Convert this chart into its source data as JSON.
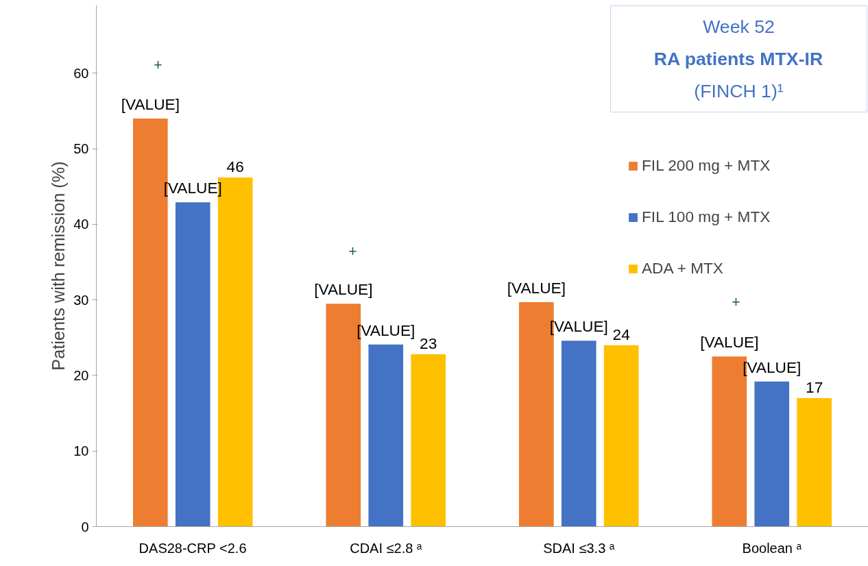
{
  "chart_data": {
    "type": "bar",
    "title": "Week 52",
    "subtitle": "RA patients MTX-IR\n(FINCH 1)¹",
    "ylabel": "Patients with remission (%)",
    "categories": [
      "DAS28-CRP <2.6",
      "CDAI ≤2.8 ᵃ",
      "SDAI ≤3.3 ᵃ",
      "Boolean ᵃ"
    ],
    "series": [
      {
        "name": "FIL 200 mg + MTX",
        "color": "#ed7d31",
        "values": [
          54,
          29.5,
          29.7,
          22.5
        ],
        "value_labels": [
          "[VALUE]",
          "[VALUE]",
          "[VALUE]",
          "[VALUE]"
        ]
      },
      {
        "name": "FIL 100 mg + MTX",
        "color": "#4472c4",
        "values": [
          42.9,
          24.1,
          24.6,
          19.2
        ],
        "value_labels": [
          "[VALUE]",
          "[VALUE]",
          "[VALUE]",
          "[VALUE]"
        ]
      },
      {
        "name": "ADA + MTX",
        "color": "#ffc000",
        "values": [
          46.2,
          22.8,
          24.0,
          17.0
        ],
        "value_labels": [
          "46",
          "23",
          "24",
          "17"
        ]
      }
    ],
    "annotations": [
      "+",
      "+",
      "+"
    ],
    "ylim": [
      0,
      69
    ],
    "yticks": [
      0,
      10,
      20,
      30,
      40,
      50,
      60
    ],
    "grid": false,
    "legend": "top right"
  }
}
